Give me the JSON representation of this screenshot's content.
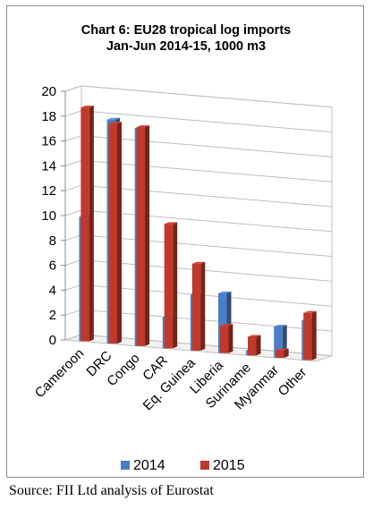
{
  "title_line1": "Chart 6: EU28 tropical log imports",
  "title_line2": "Jan-Jun 2014-15, 1000 m3",
  "source": "Source: FII Ltd analysis of Eurostat",
  "colors": {
    "s2014": "#4a7ec7",
    "s2015": "#c0392b"
  },
  "chart_data": {
    "type": "bar",
    "categories": [
      "Cameroon",
      "DRC",
      "Congo",
      "CAR",
      "Eq. Guinea",
      "Liberia",
      "Suriname",
      "Myanmar",
      "Other"
    ],
    "series": [
      {
        "name": "2014",
        "values": [
          10.0,
          18.0,
          17.5,
          2.5,
          4.5,
          4.8,
          0.4,
          2.5,
          3.2
        ]
      },
      {
        "name": "2015",
        "values": [
          18.8,
          17.7,
          17.6,
          10.0,
          7.0,
          2.2,
          1.5,
          0.6,
          3.8
        ]
      }
    ],
    "ylim": [
      0,
      20
    ],
    "yticks": [
      "0",
      "2",
      "4",
      "6",
      "8",
      "10",
      "12",
      "14",
      "16",
      "18",
      "20"
    ],
    "grid": true,
    "legend": "bottom"
  }
}
